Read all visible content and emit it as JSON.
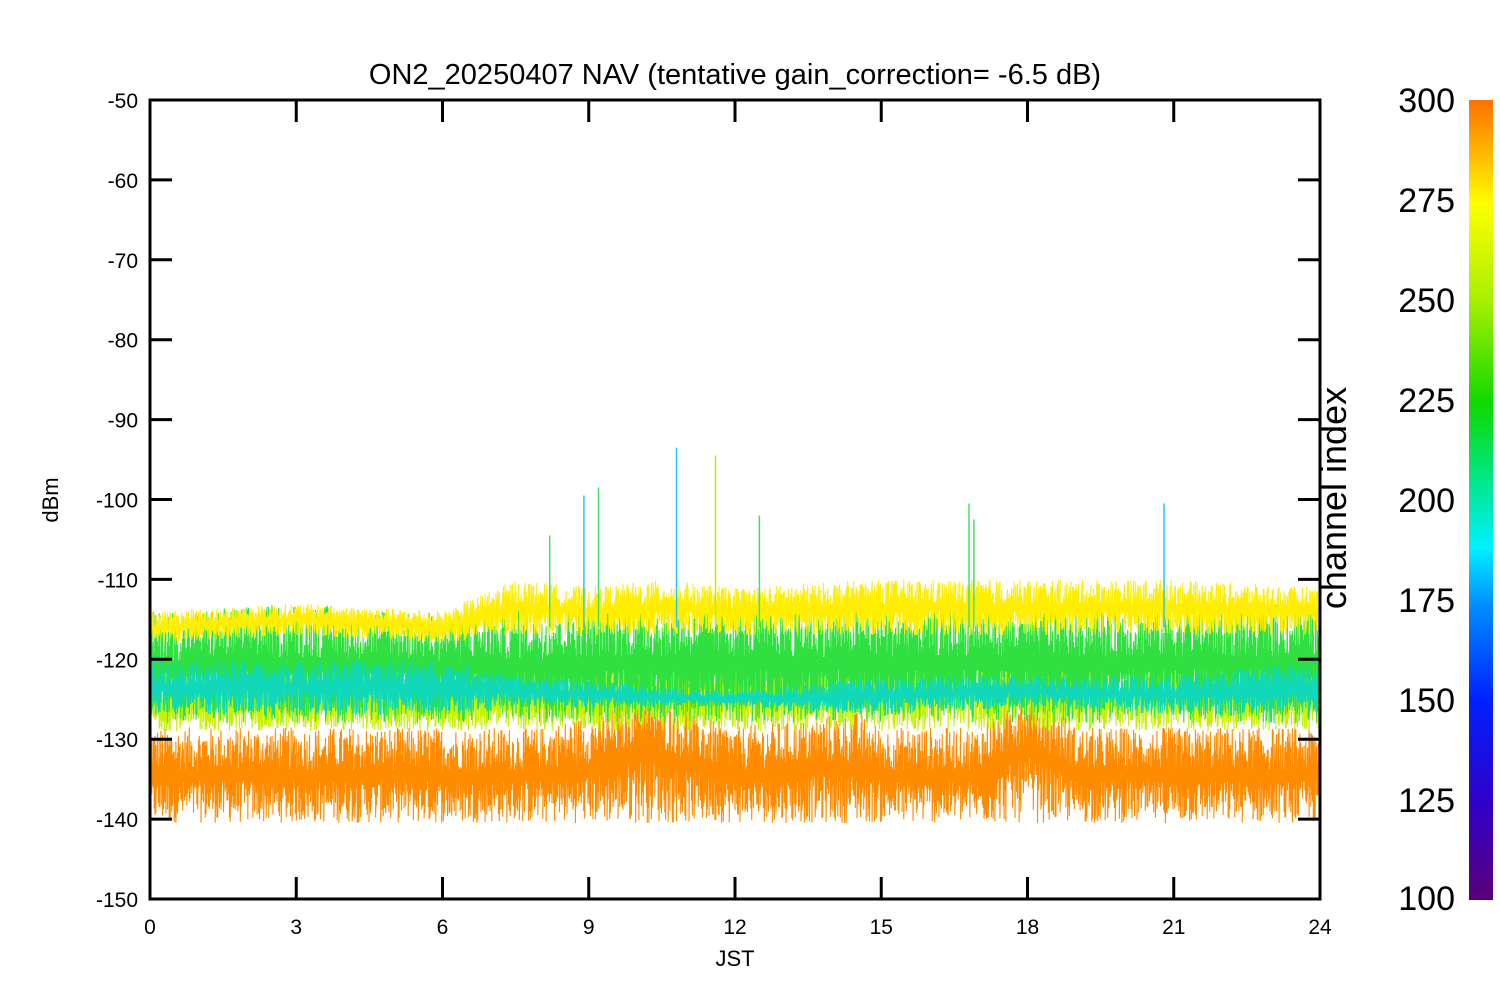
{
  "chart_data": {
    "type": "line",
    "title": "ON2_20250407 NAV (tentative gain_correction= -6.5 dB)",
    "xlabel": "JST",
    "ylabel": "dBm",
    "xlim": [
      0,
      24
    ],
    "ylim": [
      -150,
      -50
    ],
    "xticks": [
      "0",
      "3",
      "6",
      "9",
      "12",
      "15",
      "18",
      "21",
      "24"
    ],
    "yticks": [
      "-50",
      "-60",
      "-70",
      "-80",
      "-90",
      "-100",
      "-110",
      "-120",
      "-130",
      "-140",
      "-150"
    ],
    "grid": false,
    "colorbar": {
      "label": "channel index",
      "range": [
        100,
        300
      ],
      "ticks": [
        "100",
        "125",
        "150",
        "175",
        "200",
        "225",
        "250",
        "275",
        "300"
      ],
      "colormap": "rainbow"
    },
    "series": [
      {
        "channel_range": [
          270,
          300
        ],
        "color": "#ff8c00",
        "x": [
          0,
          3,
          6,
          8,
          9.5,
          10,
          11,
          12,
          14.5,
          15,
          17,
          18,
          19,
          21,
          24
        ],
        "upper": [
          -128.5,
          -128.5,
          -128.5,
          -128.5,
          -126,
          -122,
          -126,
          -128.5,
          -126.5,
          -128.5,
          -128.5,
          -122,
          -128.5,
          -128.5,
          -128.5
        ],
        "lower": [
          -140.5,
          -140.5,
          -140.5,
          -140.5,
          -140.5,
          -140.5,
          -140.5,
          -140.5,
          -140.5,
          -140.5,
          -140.5,
          -140.5,
          -140.5,
          -140.5,
          -140.5
        ]
      },
      {
        "channel_range": [
          250,
          275
        ],
        "color": "#c8f000",
        "x": [
          0,
          3,
          6,
          7.5,
          8,
          10,
          10.5,
          12,
          15,
          18,
          18.5,
          20,
          21,
          24
        ],
        "upper": [
          -122,
          -122,
          -122,
          -120,
          -120,
          -121,
          -120,
          -120,
          -120,
          -120,
          -120,
          -120,
          -120,
          -121
        ],
        "lower": [
          -129,
          -129,
          -129,
          -129,
          -129,
          -129,
          -129,
          -129,
          -129,
          -129,
          -129,
          -129,
          -129,
          -129
        ]
      },
      {
        "channel_range": [
          200,
          250
        ],
        "color": "#30e040",
        "x": [
          0,
          3,
          6,
          9,
          12,
          15,
          18,
          21,
          24
        ],
        "upper": [
          -114,
          -113,
          -114,
          -113,
          -113,
          -113,
          -113,
          -113,
          -113
        ],
        "lower": [
          -128,
          -128,
          -128,
          -128,
          -128,
          -128,
          -128,
          -128,
          -128
        ]
      },
      {
        "channel_range": [
          150,
          200
        ],
        "color": "#10d8b8",
        "x": [
          0,
          3,
          6,
          7.5,
          12,
          15,
          18,
          21,
          24
        ],
        "upper": [
          -120,
          -120,
          -120,
          -122,
          -124,
          -122,
          -122,
          -122,
          -120
        ],
        "lower": [
          -127,
          -127,
          -127,
          -126,
          -126,
          -127,
          -126,
          -127,
          -127
        ]
      },
      {
        "channel_range": [
          270,
          280
        ],
        "color": "#ffee00",
        "x": [
          0,
          3,
          6,
          7.5,
          9,
          10.5,
          12,
          15,
          16.5,
          18,
          21,
          24
        ],
        "upper": [
          -114,
          -113,
          -114,
          -110,
          -111,
          -110,
          -111,
          -110,
          -110,
          -110,
          -110,
          -111
        ],
        "lower": [
          -118,
          -117,
          -118,
          -117,
          -117,
          -117,
          -117,
          -117,
          -117,
          -117,
          -117,
          -117
        ]
      }
    ],
    "spikes": [
      {
        "x": 8.2,
        "y": -104.5,
        "color": "#40e070"
      },
      {
        "x": 8.9,
        "y": -99.5,
        "color": "#20c8ff"
      },
      {
        "x": 9.2,
        "y": -98.5,
        "color": "#40e070"
      },
      {
        "x": 10.8,
        "y": -93.5,
        "color": "#20c8ff"
      },
      {
        "x": 11.6,
        "y": -94.5,
        "color": "#b8f000"
      },
      {
        "x": 12.5,
        "y": -102.0,
        "color": "#40e070"
      },
      {
        "x": 16.8,
        "y": -100.5,
        "color": "#40e070"
      },
      {
        "x": 16.9,
        "y": -102.5,
        "color": "#40e070"
      },
      {
        "x": 20.8,
        "y": -100.5,
        "color": "#20c8ff"
      }
    ]
  }
}
